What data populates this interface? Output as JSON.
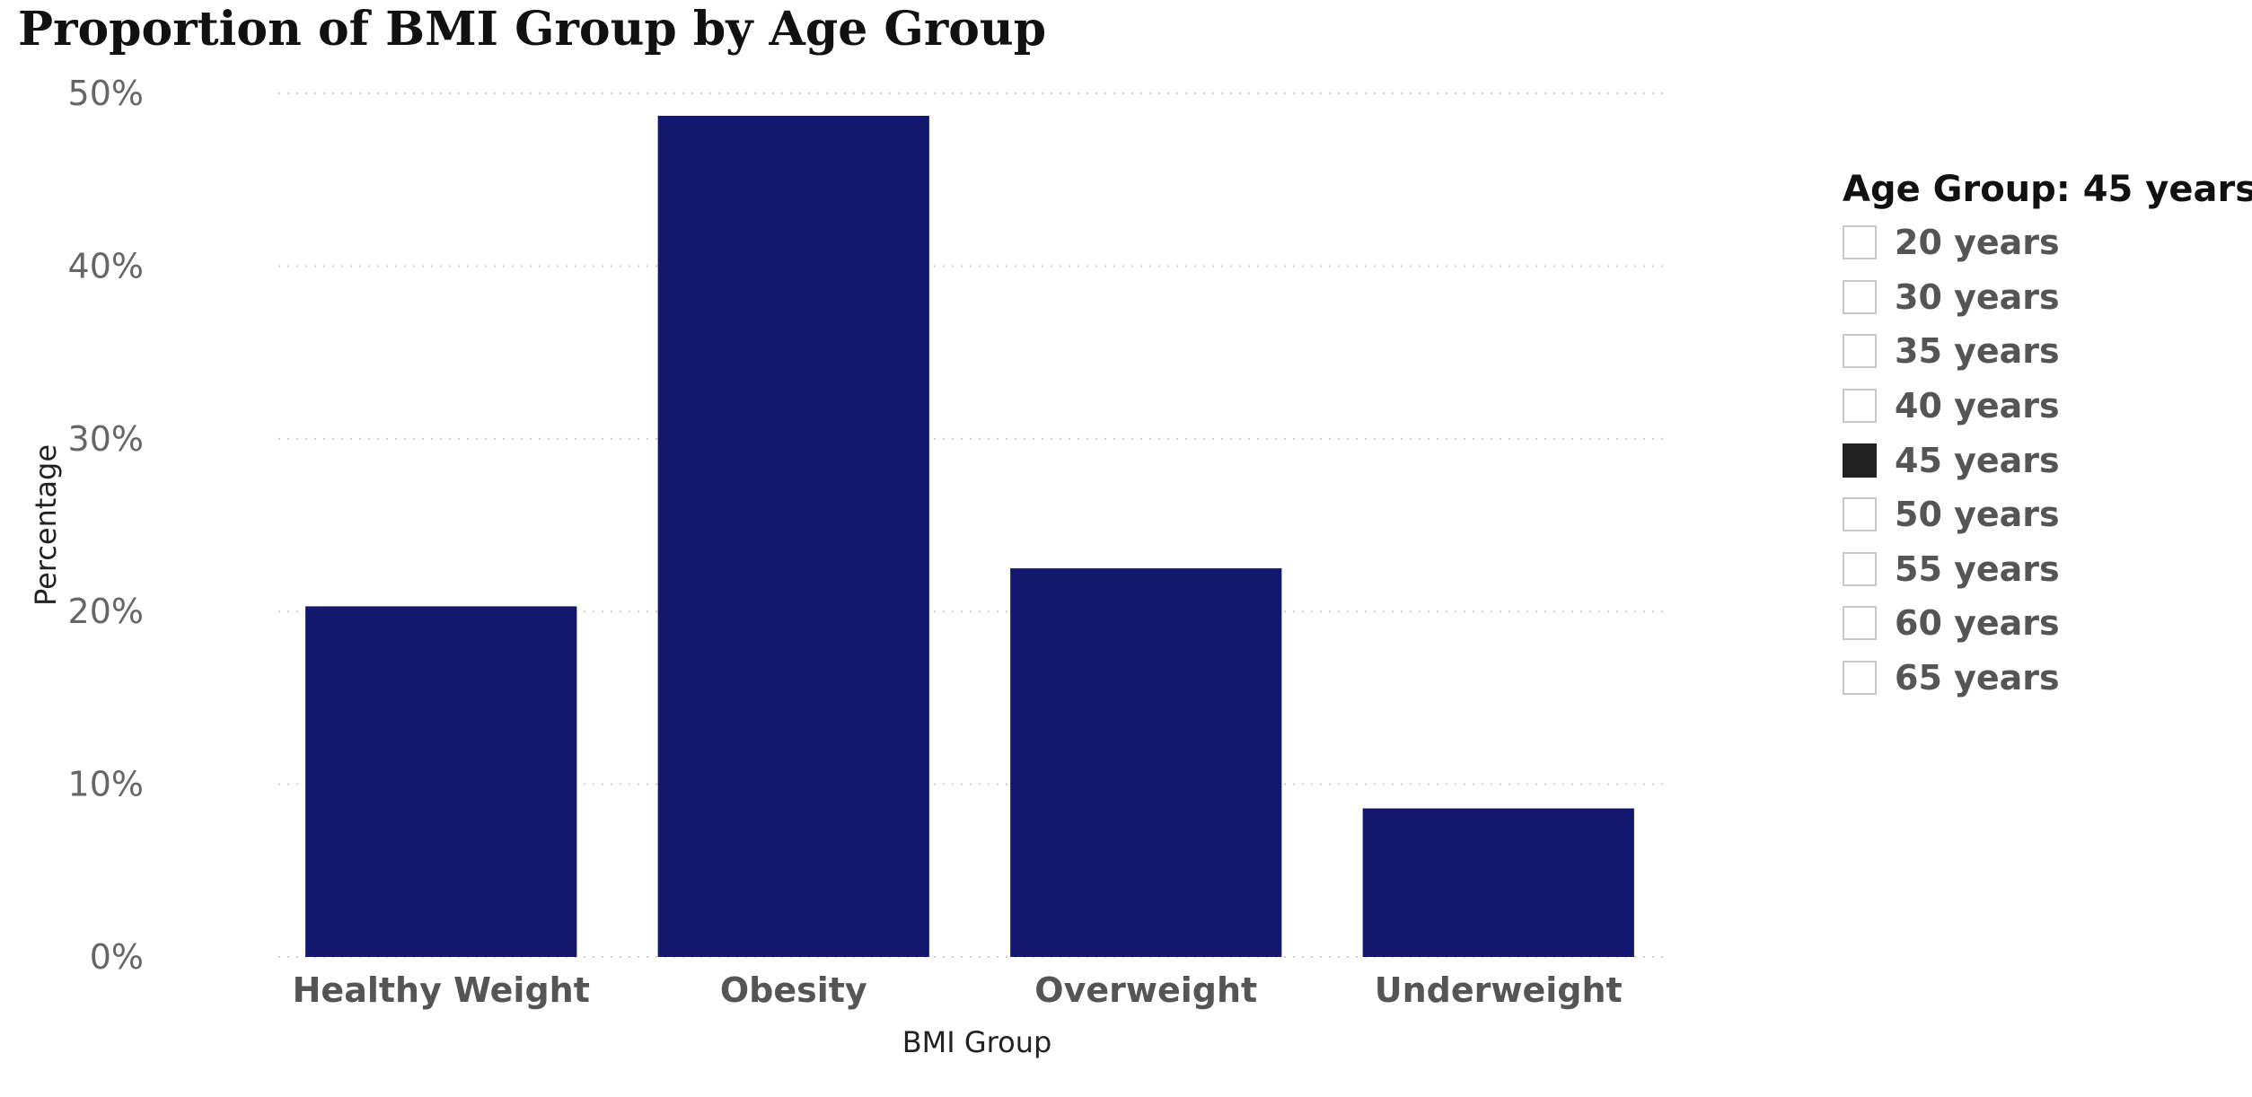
{
  "chart_data": {
    "type": "bar",
    "title": "Proportion of BMI Group by Age Group",
    "xlabel": "BMI Group",
    "ylabel": "Percentage",
    "categories": [
      "Healthy Weight",
      "Obesity",
      "Overweight",
      "Underweight"
    ],
    "values": [
      20.3,
      48.7,
      22.5,
      8.6
    ],
    "ylim": [
      0,
      50
    ],
    "yticks": [
      "0%",
      "10%",
      "20%",
      "30%",
      "40%",
      "50%"
    ],
    "bar_color": "#12186e",
    "grid": true,
    "legend_placement": "right"
  },
  "slicer": {
    "title": "Age Group: 45 years",
    "items": [
      {
        "label": "20 years",
        "checked": false
      },
      {
        "label": "30 years",
        "checked": false
      },
      {
        "label": "35 years",
        "checked": false
      },
      {
        "label": "40 years",
        "checked": false
      },
      {
        "label": "45 years",
        "checked": true
      },
      {
        "label": "50 years",
        "checked": false
      },
      {
        "label": "55 years",
        "checked": false
      },
      {
        "label": "60 years",
        "checked": false
      },
      {
        "label": "65 years",
        "checked": false
      }
    ]
  }
}
